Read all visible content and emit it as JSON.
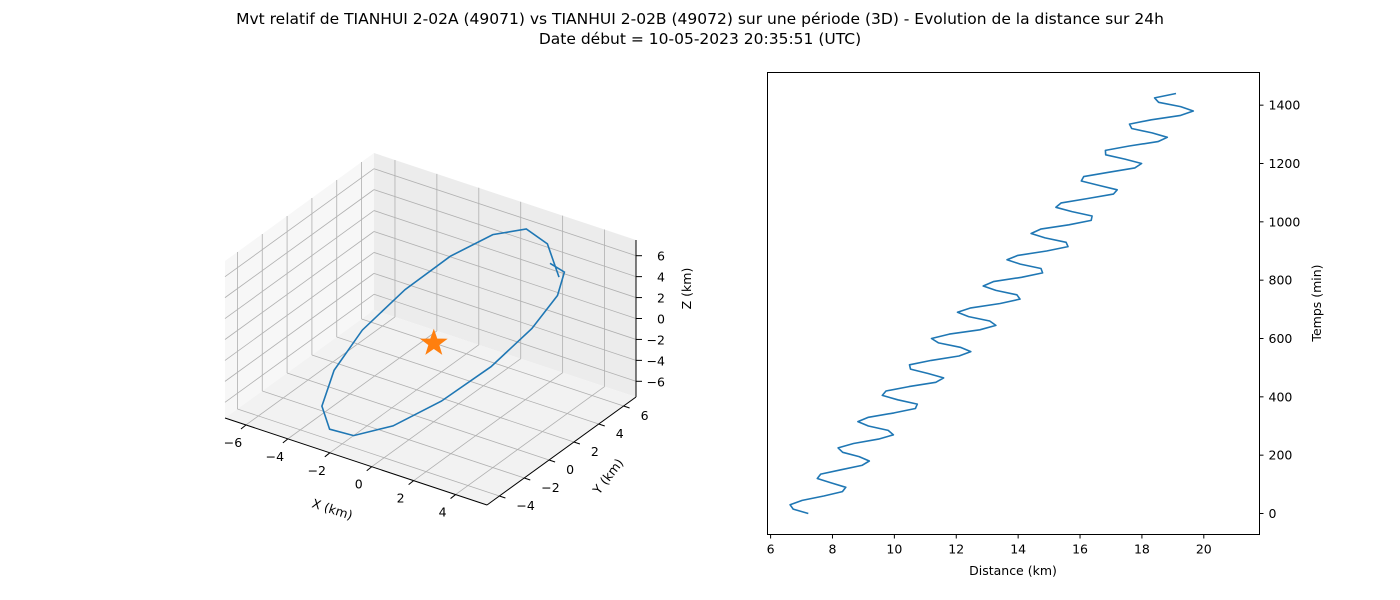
{
  "title_line1": "Mvt relatif de TIANHUI 2-02A (49071) vs TIANHUI 2-02B (49072) sur une période (3D) - Evolution de la distance sur 24h",
  "title_line2": "Date début = 10-05-2023 20:35:51 (UTC)",
  "colors": {
    "series": "#1f77b4",
    "marker": "#ff7f0e",
    "grid": "#b0b0b0",
    "pane": "#f2f2f2"
  },
  "chart_data": [
    {
      "type": "line3d",
      "xlabel": "X (km)",
      "ylabel": "Y (km)",
      "zlabel": "Z (km)",
      "xlim": [
        -7,
        5.5
      ],
      "ylim": [
        -5,
        7
      ],
      "zlim": [
        -7.5,
        7.5
      ],
      "x_ticks": [
        "−6",
        "−4",
        "−2",
        "0",
        "2",
        "4"
      ],
      "y_ticks": [
        "−4",
        "−2",
        "0",
        "2",
        "4",
        "6"
      ],
      "z_ticks": [
        "−6",
        "−4",
        "−2",
        "0",
        "2",
        "4",
        "6"
      ],
      "grid": true,
      "marker": {
        "shape": "star",
        "x": 0,
        "y": 0,
        "z": 0
      }
    },
    {
      "type": "line",
      "xlabel": "Distance (km)",
      "ylabel": "Temps (min)",
      "xlim": [
        5.9,
        21.8
      ],
      "ylim": [
        -72,
        1512
      ],
      "x_ticks": [
        "6",
        "8",
        "10",
        "12",
        "14",
        "16",
        "18",
        "20"
      ],
      "y_ticks": [
        "0",
        "200",
        "400",
        "600",
        "800",
        "1000",
        "1200",
        "1400"
      ],
      "y_axis_side": "right",
      "grid": false,
      "series": [
        {
          "time_min": [
            0,
            15,
            30,
            45,
            60,
            75,
            90,
            105,
            120,
            135,
            150,
            165,
            180,
            195,
            210,
            225,
            240,
            255,
            270,
            285,
            300,
            315,
            330,
            345,
            360,
            375,
            390,
            405,
            420,
            435,
            450,
            465,
            480,
            495,
            510,
            525,
            540,
            555,
            570,
            585,
            600,
            615,
            630,
            645,
            660,
            675,
            690,
            705,
            720,
            735,
            750,
            765,
            780,
            795,
            810,
            825,
            840,
            855,
            870,
            885,
            900,
            915,
            930,
            945,
            960,
            975,
            990,
            1005,
            1020,
            1035,
            1050,
            1065,
            1080,
            1095,
            1110,
            1125,
            1140,
            1155,
            1170,
            1185,
            1200,
            1215,
            1230,
            1245,
            1260,
            1275,
            1290,
            1305,
            1320,
            1335,
            1350,
            1365,
            1380,
            1395,
            1410,
            1425,
            1440
          ],
          "distance_km": [
            7.22,
            6.73,
            6.63,
            7.02,
            7.72,
            8.32,
            8.43,
            7.96,
            7.51,
            7.62,
            8.27,
            8.95,
            9.19,
            8.86,
            8.33,
            8.18,
            8.68,
            9.49,
            9.97,
            9.8,
            9.16,
            8.82,
            9.16,
            9.99,
            10.68,
            10.74,
            10.11,
            9.61,
            9.73,
            10.47,
            11.34,
            11.59,
            11.09,
            10.52,
            10.49,
            11.19,
            12.09,
            12.47,
            12.13,
            11.43,
            11.2,
            11.78,
            12.76,
            13.28,
            13.08,
            12.4,
            12.04,
            12.47,
            13.42,
            14.06,
            13.96,
            13.28,
            12.87,
            13.2,
            14.11,
            14.79,
            14.74,
            14.07,
            13.64,
            13.99,
            14.92,
            15.61,
            15.55,
            14.87,
            14.42,
            14.73,
            15.64,
            16.36,
            16.39,
            15.74,
            15.22,
            15.39,
            16.25,
            17.08,
            17.2,
            16.61,
            16.04,
            16.12,
            16.92,
            17.77,
            17.99,
            17.45,
            16.83,
            16.82,
            17.59,
            18.52,
            18.82,
            18.33,
            17.67,
            17.6,
            18.3,
            19.25,
            19.66,
            19.25,
            18.54,
            18.41,
            19.1
          ]
        }
      ]
    }
  ],
  "orbit_3d": {
    "x_km": [
      3.9,
      2.4,
      0.8,
      -0.8,
      -2.3,
      -3.5,
      -4.3,
      -4.4,
      -3.8,
      -2.6,
      -1.1,
      0.6,
      2.2,
      3.5,
      4.2,
      4.3,
      3.8,
      2.7
    ],
    "y_km": [
      3.5,
      5.1,
      6.1,
      6.1,
      5.2,
      3.6,
      1.5,
      -0.6,
      -2.6,
      -4.0,
      -4.6,
      -4.3,
      -3.1,
      -1.3,
      0.8,
      2.7,
      4.1,
      4.8
    ],
    "z_km": [
      5.9,
      6.7,
      6.2,
      4.6,
      2.3,
      -0.3,
      -2.9,
      -5.0,
      -6.3,
      -6.5,
      -5.6,
      -3.8,
      -1.4,
      1.2,
      3.5,
      5.1,
      5.8,
      5.3
    ]
  }
}
